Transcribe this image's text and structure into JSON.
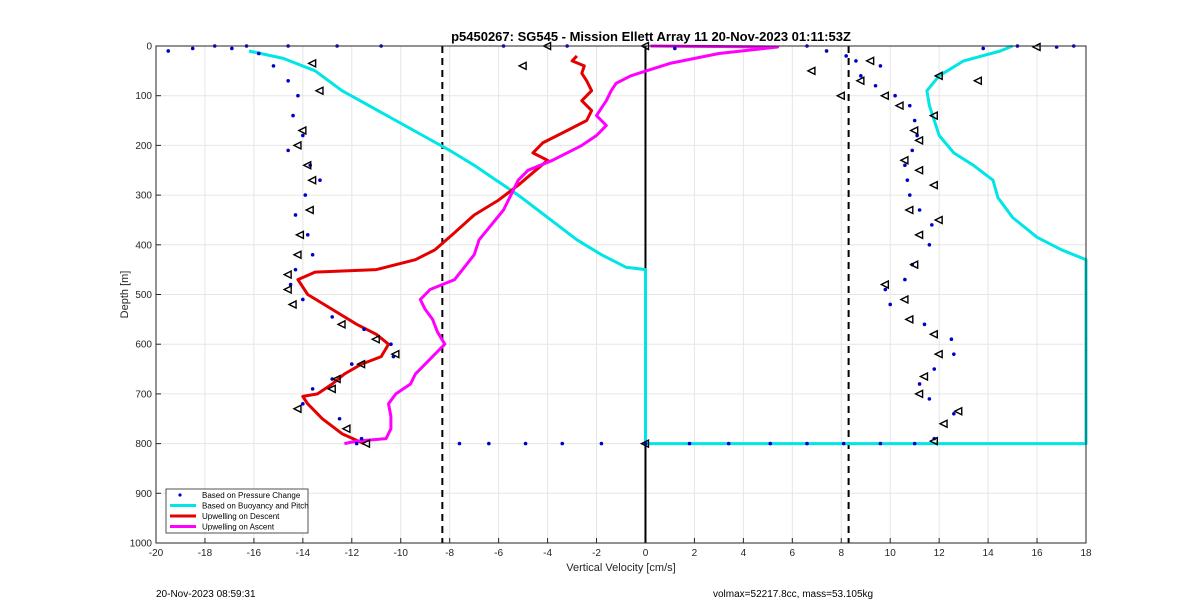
{
  "chart_data": {
    "type": "line",
    "title": "p5450267: SG545 - Mission Ellett Array 11 20-Nov-2023 01:11:53Z",
    "xlabel": "Vertical Velocity [cm/s]",
    "ylabel": "Depth [m]",
    "xlim": [
      -20,
      18
    ],
    "ylim": [
      1000,
      0
    ],
    "y_reversed": true,
    "xticks": [
      "-20",
      "-18",
      "-16",
      "-14",
      "-12",
      "-10",
      "-8",
      "-6",
      "-4",
      "-2",
      "0",
      "2",
      "4",
      "6",
      "8",
      "10",
      "12",
      "14",
      "16",
      "18"
    ],
    "yticks": [
      "0",
      "100",
      "200",
      "300",
      "400",
      "500",
      "600",
      "700",
      "800",
      "900",
      "1000"
    ],
    "grid": true,
    "legend_location": "bottom-left",
    "reference_lines": [
      {
        "x": -8.3,
        "style": "dashed",
        "color": "#000000"
      },
      {
        "x": 0,
        "style": "solid",
        "color": "#000000"
      },
      {
        "x": 8.3,
        "style": "dashed",
        "color": "#000000"
      }
    ],
    "series": [
      {
        "name": "Based on Pressure Change",
        "style": "dots",
        "color": "#0000cc",
        "points": [
          [
            -19.5,
            10
          ],
          [
            -18.5,
            5
          ],
          [
            -17.6,
            0
          ],
          [
            -16.9,
            5
          ],
          [
            -16.3,
            0
          ],
          [
            -15.8,
            15
          ],
          [
            -15.2,
            40
          ],
          [
            -14.6,
            70
          ],
          [
            -14.2,
            100
          ],
          [
            -14.4,
            140
          ],
          [
            -14.0,
            180
          ],
          [
            -14.6,
            210
          ],
          [
            -13.7,
            240
          ],
          [
            -13.3,
            270
          ],
          [
            -13.9,
            300
          ],
          [
            -14.3,
            340
          ],
          [
            -13.8,
            380
          ],
          [
            -13.6,
            420
          ],
          [
            -14.3,
            450
          ],
          [
            -14.5,
            480
          ],
          [
            -14.0,
            510
          ],
          [
            -12.8,
            545
          ],
          [
            -11.5,
            570
          ],
          [
            -10.4,
            600
          ],
          [
            -10.3,
            625
          ],
          [
            -12.0,
            640
          ],
          [
            -12.8,
            670
          ],
          [
            -13.6,
            690
          ],
          [
            -14.0,
            720
          ],
          [
            -12.5,
            750
          ],
          [
            -11.6,
            790
          ],
          [
            -11.8,
            800
          ],
          [
            -7.6,
            800
          ],
          [
            -6.4,
            800
          ],
          [
            -4.9,
            800
          ],
          [
            -3.4,
            800
          ],
          [
            -1.8,
            800
          ],
          [
            0,
            800
          ],
          [
            1.8,
            800
          ],
          [
            3.4,
            800
          ],
          [
            5.1,
            800
          ],
          [
            6.6,
            800
          ],
          [
            8.1,
            800
          ],
          [
            9.6,
            800
          ],
          [
            11.0,
            800
          ],
          [
            11.8,
            790
          ],
          [
            12.6,
            740
          ],
          [
            11.6,
            710
          ],
          [
            11.2,
            680
          ],
          [
            11.8,
            650
          ],
          [
            12.6,
            620
          ],
          [
            12.5,
            590
          ],
          [
            11.4,
            560
          ],
          [
            10.0,
            520
          ],
          [
            9.8,
            490
          ],
          [
            10.6,
            470
          ],
          [
            10.9,
            440
          ],
          [
            11.6,
            400
          ],
          [
            11.7,
            360
          ],
          [
            11.2,
            330
          ],
          [
            10.8,
            300
          ],
          [
            10.7,
            270
          ],
          [
            10.6,
            240
          ],
          [
            10.9,
            210
          ],
          [
            11.1,
            180
          ],
          [
            11.0,
            150
          ],
          [
            10.8,
            120
          ],
          [
            10.2,
            100
          ],
          [
            9.4,
            80
          ],
          [
            8.8,
            60
          ],
          [
            9.6,
            40
          ],
          [
            8.6,
            30
          ],
          [
            8.2,
            20
          ],
          [
            7.4,
            10
          ],
          [
            6.6,
            0
          ],
          [
            13.8,
            5
          ],
          [
            15.2,
            0
          ],
          [
            16.8,
            2
          ],
          [
            17.5,
            0
          ],
          [
            1.2,
            5
          ],
          [
            -3.2,
            0
          ],
          [
            -5.8,
            0
          ],
          [
            -10.8,
            0
          ],
          [
            -12.6,
            0
          ],
          [
            -14.6,
            0
          ]
        ]
      },
      {
        "name": "Based on Buoyancy and Pitch",
        "style": "line",
        "color": "#00e5e5",
        "points": [
          [
            -16.2,
            10
          ],
          [
            -14.8,
            25
          ],
          [
            -13.5,
            50
          ],
          [
            -12.4,
            90
          ],
          [
            -11.3,
            120
          ],
          [
            -10.2,
            150
          ],
          [
            -9.1,
            180
          ],
          [
            -8.0,
            210
          ],
          [
            -7.0,
            240
          ],
          [
            -6.1,
            270
          ],
          [
            -5.2,
            300
          ],
          [
            -4.4,
            330
          ],
          [
            -3.6,
            360
          ],
          [
            -2.8,
            390
          ],
          [
            -1.8,
            420
          ],
          [
            -0.8,
            445
          ],
          [
            0,
            450
          ],
          [
            0,
            800
          ],
          [
            18,
            800
          ],
          [
            18,
            430
          ],
          [
            17.0,
            410
          ],
          [
            16.0,
            385
          ],
          [
            15.0,
            345
          ],
          [
            14.4,
            305
          ],
          [
            14.2,
            270
          ],
          [
            13.4,
            240
          ],
          [
            12.6,
            215
          ],
          [
            12.0,
            180
          ],
          [
            11.8,
            150
          ],
          [
            11.6,
            120
          ],
          [
            11.5,
            90
          ],
          [
            12.0,
            60
          ],
          [
            13.0,
            30
          ],
          [
            14.5,
            10
          ],
          [
            15.0,
            0
          ]
        ]
      },
      {
        "name": "Upwelling on Descent",
        "style": "line",
        "color": "#e50000",
        "points": [
          [
            -11.5,
            800
          ],
          [
            -12.4,
            780
          ],
          [
            -13.2,
            750
          ],
          [
            -13.8,
            720
          ],
          [
            -14.0,
            705
          ],
          [
            -13.4,
            700
          ],
          [
            -12.8,
            680
          ],
          [
            -12.3,
            660
          ],
          [
            -11.6,
            640
          ],
          [
            -10.8,
            625
          ],
          [
            -10.5,
            600
          ],
          [
            -11.0,
            580
          ],
          [
            -11.8,
            560
          ],
          [
            -12.8,
            530
          ],
          [
            -13.8,
            500
          ],
          [
            -14.2,
            470
          ],
          [
            -13.5,
            455
          ],
          [
            -11.0,
            450
          ],
          [
            -9.4,
            430
          ],
          [
            -8.6,
            410
          ],
          [
            -7.9,
            380
          ],
          [
            -7.0,
            340
          ],
          [
            -6.0,
            310
          ],
          [
            -5.2,
            280
          ],
          [
            -4.6,
            255
          ],
          [
            -4.0,
            230
          ],
          [
            -4.6,
            215
          ],
          [
            -4.2,
            195
          ],
          [
            -3.4,
            175
          ],
          [
            -2.4,
            150
          ],
          [
            -2.2,
            130
          ],
          [
            -2.6,
            110
          ],
          [
            -2.2,
            90
          ],
          [
            -2.4,
            70
          ],
          [
            -2.6,
            55
          ],
          [
            -2.5,
            40
          ],
          [
            -3.0,
            30
          ],
          [
            -2.8,
            20
          ]
        ]
      },
      {
        "name": "Upwelling on Ascent",
        "style": "line",
        "color": "#ff00ff",
        "points": [
          [
            -12.3,
            800
          ],
          [
            -11.8,
            795
          ],
          [
            -10.6,
            790
          ],
          [
            -10.4,
            770
          ],
          [
            -10.4,
            745
          ],
          [
            -10.5,
            720
          ],
          [
            -10.2,
            700
          ],
          [
            -9.6,
            680
          ],
          [
            -9.4,
            660
          ],
          [
            -9.0,
            640
          ],
          [
            -8.6,
            620
          ],
          [
            -8.2,
            600
          ],
          [
            -8.5,
            575
          ],
          [
            -8.7,
            550
          ],
          [
            -9.0,
            530
          ],
          [
            -9.2,
            510
          ],
          [
            -8.8,
            490
          ],
          [
            -7.8,
            470
          ],
          [
            -7.4,
            445
          ],
          [
            -7.0,
            420
          ],
          [
            -6.8,
            390
          ],
          [
            -6.3,
            360
          ],
          [
            -5.8,
            330
          ],
          [
            -5.5,
            300
          ],
          [
            -5.2,
            270
          ],
          [
            -4.8,
            250
          ],
          [
            -3.8,
            230
          ],
          [
            -2.6,
            200
          ],
          [
            -2.0,
            180
          ],
          [
            -1.6,
            160
          ],
          [
            -2.0,
            140
          ],
          [
            -1.6,
            110
          ],
          [
            -1.4,
            90
          ],
          [
            -1.2,
            75
          ],
          [
            -0.6,
            60
          ],
          [
            1.0,
            35
          ],
          [
            3.0,
            15
          ],
          [
            5.4,
            2
          ],
          [
            0.2,
            0
          ]
        ]
      }
    ],
    "markers": [
      [
        -13.6,
        35
      ],
      [
        -13.3,
        90
      ],
      [
        -14.0,
        170
      ],
      [
        -14.2,
        200
      ],
      [
        -13.8,
        240
      ],
      [
        -13.6,
        270
      ],
      [
        -13.7,
        330
      ],
      [
        -14.1,
        380
      ],
      [
        -14.2,
        420
      ],
      [
        -14.6,
        460
      ],
      [
        -14.6,
        490
      ],
      [
        -14.4,
        520
      ],
      [
        -12.4,
        560
      ],
      [
        -11.0,
        590
      ],
      [
        -10.2,
        620
      ],
      [
        -11.6,
        640
      ],
      [
        -12.6,
        670
      ],
      [
        -12.8,
        690
      ],
      [
        -14.2,
        730
      ],
      [
        -12.2,
        770
      ],
      [
        -11.4,
        800
      ],
      [
        0,
        800
      ],
      [
        11.8,
        795
      ],
      [
        12.2,
        760
      ],
      [
        12.8,
        735
      ],
      [
        11.2,
        700
      ],
      [
        11.4,
        665
      ],
      [
        12.0,
        620
      ],
      [
        11.8,
        580
      ],
      [
        10.8,
        550
      ],
      [
        10.6,
        510
      ],
      [
        9.8,
        480
      ],
      [
        11.0,
        440
      ],
      [
        11.2,
        380
      ],
      [
        12.0,
        350
      ],
      [
        10.8,
        330
      ],
      [
        11.8,
        280
      ],
      [
        11.2,
        250
      ],
      [
        10.6,
        230
      ],
      [
        11.2,
        190
      ],
      [
        11.0,
        170
      ],
      [
        11.8,
        140
      ],
      [
        10.4,
        120
      ],
      [
        9.8,
        100
      ],
      [
        13.6,
        70
      ],
      [
        12.0,
        60
      ],
      [
        8.8,
        70
      ],
      [
        8.0,
        100
      ],
      [
        6.8,
        50
      ],
      [
        9.2,
        30
      ],
      [
        16.0,
        2
      ],
      [
        -4.0,
        0
      ],
      [
        -5.0,
        40
      ],
      [
        0,
        0
      ]
    ]
  },
  "footer": {
    "timestamp": "20-Nov-2023 08:59:31",
    "params": "volmax=52217.8cc, mass=53.105kg"
  }
}
